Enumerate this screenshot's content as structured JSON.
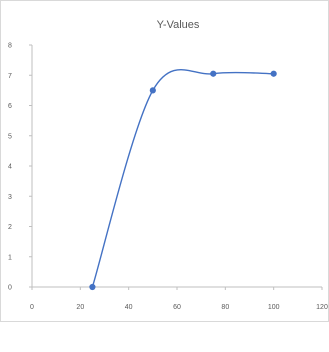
{
  "chart_data": {
    "type": "scatter",
    "title": "Y-Values",
    "xlabel": "",
    "ylabel": "",
    "xlim": [
      0,
      120
    ],
    "ylim": [
      0,
      8
    ],
    "x_ticks": [
      "0",
      "20",
      "40",
      "60",
      "80",
      "100",
      "120"
    ],
    "y_ticks": [
      "0",
      "1",
      "2",
      "3",
      "4",
      "5",
      "6",
      "7",
      "8"
    ],
    "grid": false,
    "legend": "none",
    "smooth_line": true,
    "series": [
      {
        "x": [
          25,
          50,
          75,
          100
        ],
        "y": [
          0,
          6.5,
          7.05,
          7.05
        ]
      }
    ],
    "colors": {
      "series": "#4472c4",
      "axis": "#bfbfbf",
      "text": "#595959"
    }
  }
}
